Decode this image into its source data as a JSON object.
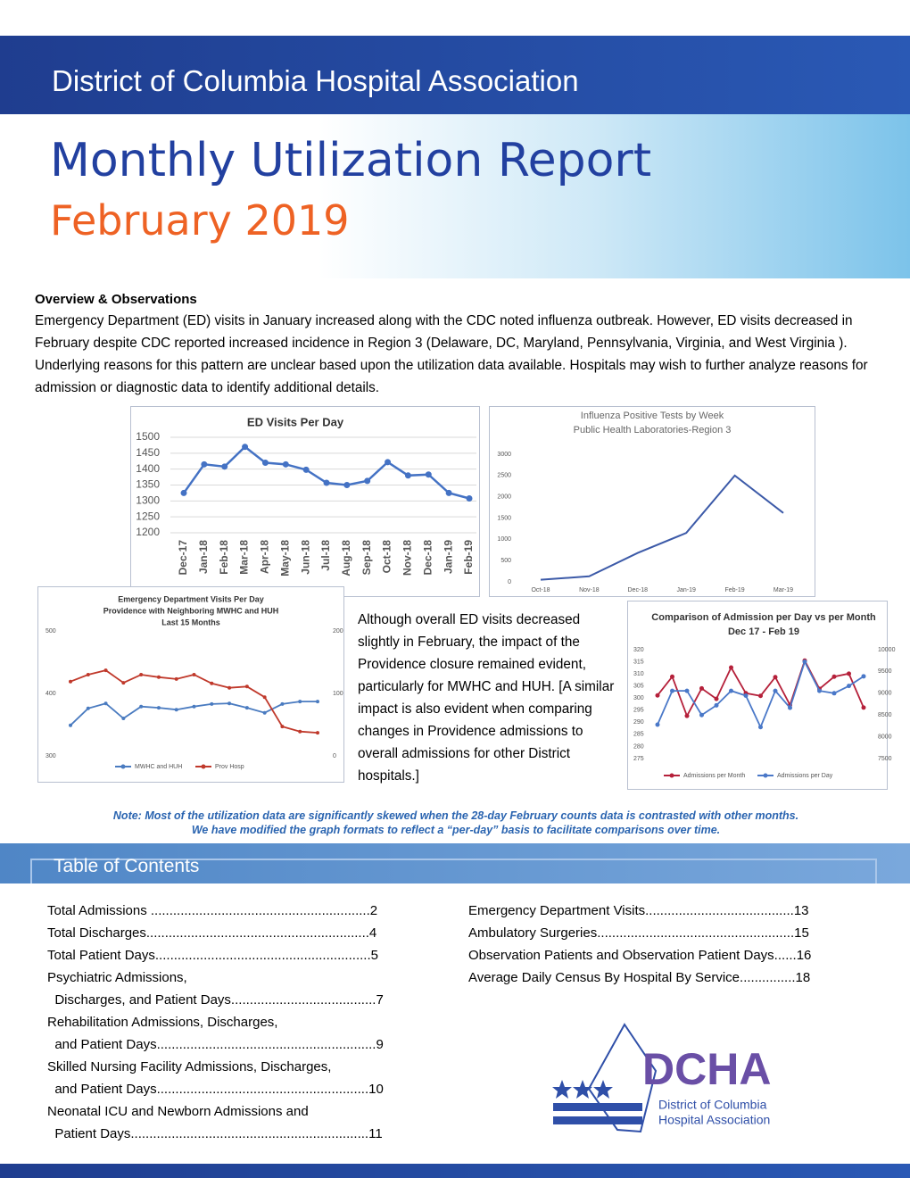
{
  "header": {
    "org": "District of Columbia Hospital Association",
    "title": "Monthly Utilization Report",
    "subtitle": "February 2019"
  },
  "overview": {
    "heading": "Overview & Observations",
    "text": "Emergency Department (ED) visits in January increased along with the CDC noted influenza outbreak. However, ED visits decreased in February despite CDC reported increased incidence in Region 3 (Delaware, DC, Maryland, Pennsylvania, Virginia, and West Virginia ). Underlying reasons for this pattern are unclear based upon the utilization data available. Hospitals may wish to further analyze reasons for admission or diagnostic data to identify additional details."
  },
  "chart_data": [
    {
      "type": "line",
      "title": [
        "ED Visits Per Day"
      ],
      "categories": [
        "Dec-17",
        "Jan-18",
        "Feb-18",
        "Mar-18",
        "Apr-18",
        "May-18",
        "Jun-18",
        "Jul-18",
        "Aug-18",
        "Sep-18",
        "Oct-18",
        "Nov-18",
        "Dec-18",
        "Jan-19",
        "Feb-19"
      ],
      "values": [
        1325,
        1415,
        1408,
        1470,
        1420,
        1415,
        1398,
        1357,
        1350,
        1363,
        1422,
        1380,
        1383,
        1325,
        1308
      ],
      "color": "#4472c4",
      "markers": true,
      "ylim": [
        1200,
        1500
      ],
      "yticks": [
        1200,
        1250,
        1300,
        1350,
        1400,
        1450,
        1500
      ],
      "grid": true
    },
    {
      "type": "line",
      "title": [
        "Influenza Positive Tests by Week",
        "Public Health Laboratories-Region 3"
      ],
      "categories": [
        "Oct-18",
        "Nov-18",
        "Dec-18",
        "Jan-19",
        "Feb-19",
        "Mar-19"
      ],
      "values": [
        50,
        130,
        680,
        1150,
        2500,
        1620
      ],
      "color": "#3c5aa8",
      "markers": false,
      "ylim": [
        0,
        3000
      ],
      "yticks": [
        0,
        500,
        1000,
        1500,
        2000,
        2500,
        3000
      ],
      "grid": false
    },
    {
      "type": "line",
      "title": [
        "Emergency Department Visits Per Day",
        "Providence  with Neighboring MWHC and HUH",
        "Last 15 Months"
      ],
      "categories": [
        null,
        null,
        null,
        null,
        null,
        null,
        null,
        null,
        null,
        null,
        null,
        null,
        null,
        null,
        null
      ],
      "series": [
        {
          "name": "MWHC and HUH",
          "color": "#4a7bc0",
          "values": [
            349,
            376,
            384,
            360,
            379,
            377,
            374,
            379,
            383,
            384,
            377,
            369,
            383,
            387,
            387
          ]
        },
        {
          "name": "Prov Hosp",
          "color": "#c0392b",
          "axis": "y2",
          "values": [
            119,
            130,
            137,
            117,
            130,
            126,
            123,
            130,
            116,
            109,
            111,
            94,
            47,
            39,
            37
          ]
        }
      ],
      "markers": true,
      "ylim": [
        300,
        500
      ],
      "yticks": [
        300,
        400,
        500
      ],
      "y2lim": [
        0,
        200
      ],
      "y2ticks": [
        0,
        100,
        200
      ],
      "grid": false
    },
    {
      "type": "line",
      "title": [
        "Comparison of Admission per Day vs per Month",
        "Dec 17 - Feb 19"
      ],
      "categories": [
        null,
        null,
        null,
        null,
        null,
        null,
        null,
        null,
        null,
        null,
        null,
        null,
        null,
        null,
        null
      ],
      "series": [
        {
          "name": "Admissions per Month",
          "color": "#b5203a",
          "axis": "y2",
          "values": [
            8950,
            9380,
            8480,
            9110,
            8870,
            9590,
            9000,
            8940,
            9370,
            8730,
            9750,
            9100,
            9380,
            9450,
            8670
          ]
        },
        {
          "name": "Admissions per Day",
          "color": "#4a78c8",
          "values": [
            289,
            303,
            303,
            293,
            297,
            303,
            301,
            288,
            303,
            296,
            315,
            303,
            302,
            305,
            309
          ]
        }
      ],
      "markers": true,
      "ylim": [
        275,
        320
      ],
      "yticks": [
        275,
        280,
        285,
        290,
        295,
        300,
        305,
        310,
        315,
        320
      ],
      "y2lim": [
        7500,
        10000
      ],
      "y2ticks": [
        7500,
        8000,
        8500,
        9000,
        9500,
        10000
      ],
      "grid": false
    }
  ],
  "side_text": "Although overall ED visits decreased slightly in February, the impact of the Providence closure remained evident, particularly for MWHC and HUH. [A similar impact is also evident when comparing changes in Providence admissions to overall admissions for other District hospitals.]",
  "note": [
    "Note: Most of the utilization data are significantly skewed when the 28-day February counts data is contrasted with other months.",
    "We have modified the graph formats to reflect a “per-day” basis to facilitate comparisons over time."
  ],
  "toc": {
    "heading": "Table of Contents",
    "left": [
      "Total Admissions ...........................................................2",
      "Total Discharges............................................................4",
      "Total Patient Days..........................................................5",
      "Psychiatric Admissions,",
      "  Discharges, and Patient Days.......................................7",
      "Rehabilitation Admissions, Discharges,",
      "  and Patient Days...........................................................9",
      "Skilled Nursing Facility Admissions, Discharges,",
      "  and Patient Days.........................................................10",
      "Neonatal ICU and Newborn Admissions and",
      "  Patient Days................................................................11"
    ],
    "right": [
      "Emergency Department Visits........................................13",
      "Ambulatory Surgeries.....................................................15",
      "Observation Patients and Observation Patient Days......16",
      "Average Daily Census By Hospital By Service...............18"
    ]
  },
  "logo": {
    "abbr": "DCHA",
    "line1": "District of Columbia",
    "line2": "Hospital Association"
  }
}
